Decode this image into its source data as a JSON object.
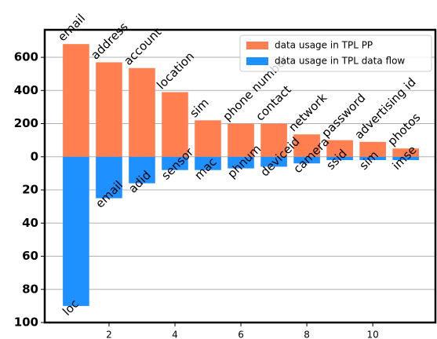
{
  "chart_data": {
    "type": "bar",
    "x": [
      1,
      2,
      3,
      4,
      5,
      6,
      7,
      8,
      9,
      10,
      11
    ],
    "series": [
      {
        "name": "data usage in TPL PP",
        "color": "#ff7f50",
        "values": [
          680,
          570,
          535,
          390,
          220,
          200,
          200,
          135,
          100,
          90,
          50
        ],
        "labels": [
          "email",
          "address",
          "account",
          "location",
          "sim",
          "phone number",
          "contact",
          "network",
          "password",
          "advertising id",
          "photos"
        ]
      },
      {
        "name": "data usage in TPL data flow",
        "color": "#1e90ff",
        "values": [
          -900,
          -250,
          -160,
          -80,
          -80,
          -70,
          -60,
          -40,
          -20,
          -20,
          -20
        ],
        "labels": [
          "loc",
          "email",
          "adid",
          "sensor",
          "mac",
          "phnum",
          "deviceid",
          "camera",
          "ssid",
          "sim",
          "imse"
        ]
      }
    ],
    "xlim": [
      0.05,
      11.9
    ],
    "xticks": [
      2,
      4,
      6,
      8,
      10
    ],
    "ylim": [
      -1000,
      766
    ],
    "yticks": [
      600,
      400,
      200,
      0,
      {
        "value": -200,
        "label": "20"
      },
      {
        "value": -400,
        "label": "40"
      },
      {
        "value": -600,
        "label": "60"
      },
      {
        "value": -800,
        "label": "80"
      },
      {
        "value": -1000,
        "label": "100"
      }
    ],
    "grid": true,
    "legend": "upper right"
  }
}
